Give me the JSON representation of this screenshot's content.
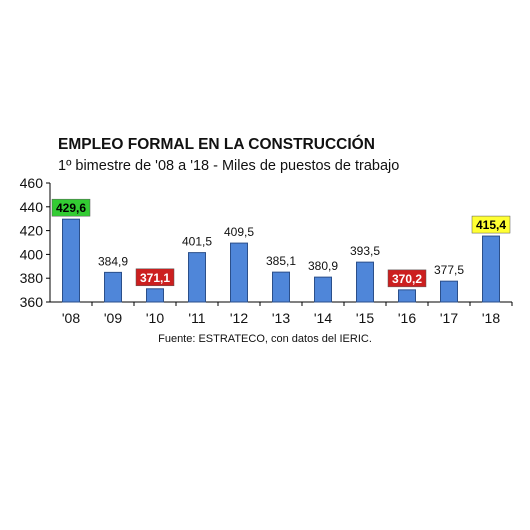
{
  "chart_data": {
    "type": "bar",
    "title": "EMPLEO FORMAL EN LA CONSTRUCCIÓN",
    "subtitle": "1º bimestre de '08 a '18 - Miles de puestos de trabajo",
    "categories": [
      "'08",
      "'09",
      "'10",
      "'11",
      "'12",
      "'13",
      "'14",
      "'15",
      "'16",
      "'17",
      "'18"
    ],
    "values": [
      429.6,
      384.9,
      371.1,
      401.5,
      409.5,
      385.1,
      380.9,
      393.5,
      370.2,
      377.5,
      415.4
    ],
    "value_labels": [
      "429,6",
      "384,9",
      "371,1",
      "401,5",
      "409,5",
      "385,1",
      "380,9",
      "393,5",
      "370,2",
      "377,5",
      "415,4"
    ],
    "highlights": [
      {
        "index": 0,
        "bg": "#33cc33",
        "text_color": "#000000"
      },
      {
        "index": 2,
        "bg": "#cc1f1f",
        "text_color": "#ffffff"
      },
      {
        "index": 8,
        "bg": "#cc1f1f",
        "text_color": "#ffffff"
      },
      {
        "index": 10,
        "bg": "#ffff33",
        "text_color": "#000000"
      }
    ],
    "ylim": [
      360,
      460
    ],
    "yticks": [
      360,
      380,
      400,
      420,
      440,
      460
    ],
    "xlabel": "",
    "ylabel": "",
    "grid": false,
    "bar_color": "#4f86d9",
    "bar_edge": "#2b4f8a",
    "source": "Fuente: ESTRATECO, con datos del IERIC."
  }
}
